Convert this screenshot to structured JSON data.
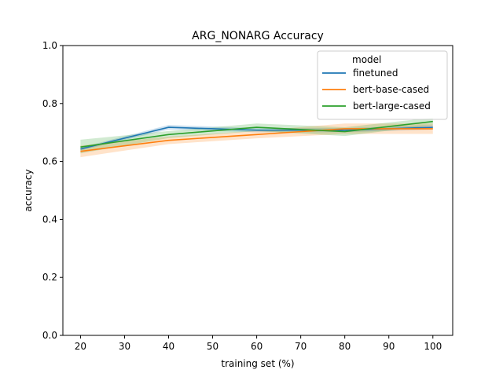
{
  "chart_data": {
    "type": "line",
    "title": "ARG_NONARG Accuracy",
    "xlabel": "training set (%)",
    "ylabel": "accuracy",
    "xlim": [
      16,
      104.5
    ],
    "ylim": [
      0.0,
      1.0
    ],
    "xticks": [
      20,
      30,
      40,
      50,
      60,
      70,
      80,
      90,
      100
    ],
    "yticks": [
      0.0,
      0.2,
      0.4,
      0.6,
      0.8,
      1.0
    ],
    "xtick_labels": [
      "20",
      "30",
      "40",
      "50",
      "60",
      "70",
      "80",
      "90",
      "100"
    ],
    "ytick_labels": [
      "0.0",
      "0.2",
      "0.4",
      "0.6",
      "0.8",
      "1.0"
    ],
    "grid": false,
    "legend": {
      "title": "model",
      "position": "top-right"
    },
    "x": [
      20,
      40,
      60,
      80,
      100
    ],
    "series": [
      {
        "name": "finetuned",
        "color": "#1f77b4",
        "values": [
          0.643,
          0.718,
          0.708,
          0.708,
          0.718
        ],
        "ci_low": [
          0.638,
          0.71,
          0.701,
          0.701,
          0.71
        ],
        "ci_high": [
          0.648,
          0.726,
          0.715,
          0.715,
          0.726
        ]
      },
      {
        "name": "bert-base-cased",
        "color": "#ff7f0e",
        "values": [
          0.635,
          0.673,
          0.693,
          0.713,
          0.713
        ],
        "ci_low": [
          0.615,
          0.66,
          0.68,
          0.695,
          0.695
        ],
        "ci_high": [
          0.655,
          0.686,
          0.706,
          0.731,
          0.731
        ]
      },
      {
        "name": "bert-large-cased",
        "color": "#2ca02c",
        "values": [
          0.65,
          0.693,
          0.718,
          0.703,
          0.738
        ],
        "ci_low": [
          0.628,
          0.681,
          0.705,
          0.688,
          0.725
        ],
        "ci_high": [
          0.675,
          0.705,
          0.731,
          0.718,
          0.751
        ]
      }
    ]
  }
}
